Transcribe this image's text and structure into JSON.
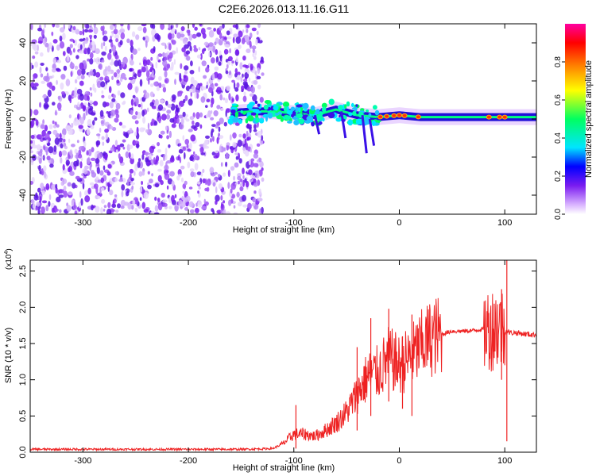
{
  "title": "C2E6.2026.013.11.16.G11",
  "chart_data": [
    {
      "type": "heatmap",
      "title": "C2E6.2026.013.11.16.G11",
      "xlabel": "Height of straight line (km)",
      "ylabel": "Frequency (Hz)",
      "xlim": [
        -350,
        130
      ],
      "ylim": [
        -50,
        50
      ],
      "xticks": [
        -300,
        -200,
        -100,
        0,
        100
      ],
      "yticks": [
        -40,
        -20,
        0,
        20,
        40
      ],
      "colorbar": {
        "label": "Normalized spectral amplitude",
        "range": [
          0,
          1
        ],
        "ticks": [
          0.0,
          0.2,
          0.4,
          0.6,
          0.8
        ],
        "colormap": [
          "#ffffff",
          "#d9b3ff",
          "#7a1cf0",
          "#0000ff",
          "#00e5ff",
          "#00ff60",
          "#ffff00",
          "#ff8000",
          "#ff0000",
          "#ff00a0"
        ]
      },
      "noise_region_x": [
        -350,
        -137
      ],
      "signal_band": {
        "x": [
          -160,
          -140,
          -120,
          -100,
          -80,
          -60,
          -40,
          -20,
          0,
          20,
          60,
          100,
          130
        ],
        "center_hz": [
          3,
          4,
          4,
          3,
          2,
          5,
          2,
          1,
          2,
          1,
          1,
          1,
          1
        ]
      }
    },
    {
      "type": "line",
      "xlabel": "Height of straight line (km)",
      "ylabel": "SNR (10 * v/v)",
      "multiplier": "(x10",
      "multiplier_exp": "4",
      "multiplier_close": ")",
      "xlim": [
        -350,
        130
      ],
      "ylim": [
        0,
        2.65
      ],
      "xticks": [
        -300,
        -200,
        -100,
        0,
        100
      ],
      "yticks": [
        0.0,
        0.5,
        1.0,
        1.5,
        2.0,
        2.5
      ],
      "color": "#ee2222",
      "series": [
        {
          "name": "SNR",
          "x": [
            -350,
            -300,
            -250,
            -200,
            -150,
            -120,
            -110,
            -100,
            -90,
            -80,
            -70,
            -60,
            -50,
            -40,
            -30,
            -20,
            -10,
            0,
            10,
            20,
            30,
            40,
            50,
            60,
            70,
            80,
            90,
            95,
            100,
            105,
            110,
            120,
            130
          ],
          "values": [
            0.04,
            0.04,
            0.04,
            0.04,
            0.04,
            0.05,
            0.12,
            0.25,
            0.25,
            0.22,
            0.3,
            0.4,
            0.55,
            0.8,
            1.05,
            1.1,
            1.3,
            1.2,
            1.3,
            1.45,
            1.58,
            1.63,
            1.67,
            1.67,
            1.68,
            1.7,
            1.72,
            1.74,
            1.68,
            1.65,
            1.65,
            1.63,
            1.62
          ],
          "spikes": [
            {
              "x": -98,
              "low": 0.05,
              "high": 0.65
            },
            {
              "x": -40,
              "low": 0.3,
              "high": 1.45
            },
            {
              "x": -27,
              "low": 0.5,
              "high": 1.85
            },
            {
              "x": -10,
              "low": 0.7,
              "high": 1.98
            },
            {
              "x": 3,
              "low": 0.6,
              "high": 1.6
            },
            {
              "x": 12,
              "low": 0.5,
              "high": 1.9
            },
            {
              "x": 90,
              "low": 1.3,
              "high": 2.05
            },
            {
              "x": 97,
              "low": 1.0,
              "high": 2.25
            },
            {
              "x": 102,
              "low": 0.15,
              "high": 2.65
            }
          ]
        }
      ]
    }
  ]
}
